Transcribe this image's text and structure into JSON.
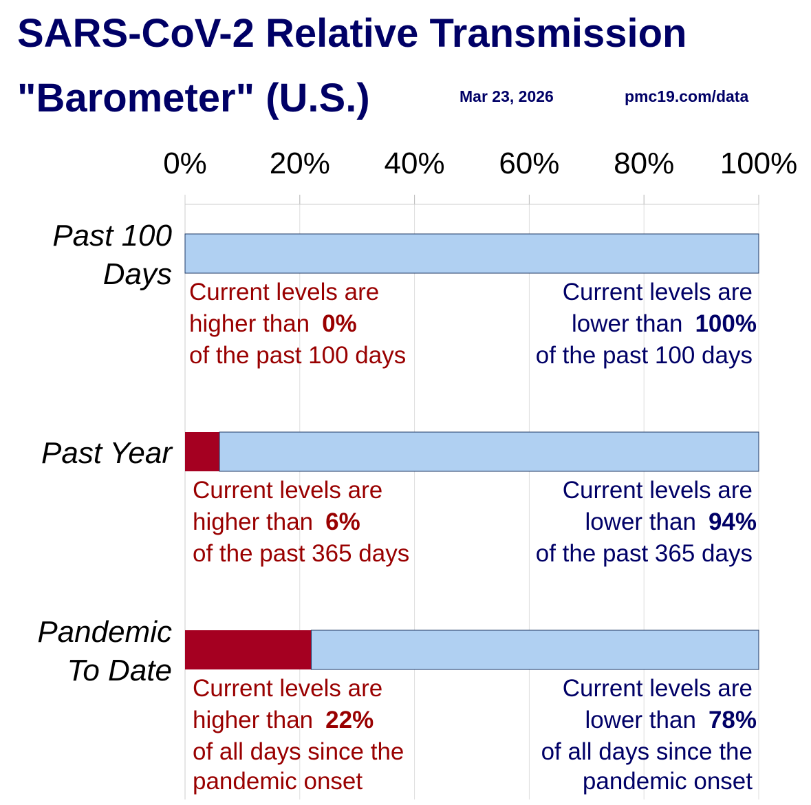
{
  "chart_data": {
    "type": "bar",
    "stacked": true,
    "orientation": "horizontal",
    "title": "SARS-CoV-2 Relative Transmission",
    "subtitle": "\"Barometer\" (U.S.)",
    "date": "Mar 23, 2026",
    "source": "pmc19.com/data",
    "categories": [
      "Past 100 Days",
      "Past Year",
      "Pandemic To Date"
    ],
    "series": [
      {
        "color": "#a50021",
        "values": [
          0,
          6,
          22
        ],
        "value_labels": [
          "0%",
          "6%",
          "22%"
        ],
        "notes": [
          [
            "Current levels are",
            "higher than",
            "of the past 100 days"
          ],
          [
            "Current levels are",
            "higher than",
            "of the past 365 days"
          ],
          [
            "Current levels are",
            "higher than",
            "of all days since the",
            "pandemic onset"
          ]
        ]
      },
      {
        "color": "#b0d0f2",
        "values": [
          100,
          94,
          78
        ],
        "value_labels": [
          "100%",
          "94%",
          "78%"
        ],
        "notes": [
          [
            "Current levels are",
            "lower than",
            "of the past 100 days"
          ],
          [
            "Current levels are",
            "lower than",
            "of the past 365 days"
          ],
          [
            "Current levels are",
            "lower than",
            "of all days since the",
            "pandemic onset"
          ]
        ]
      }
    ],
    "xlim": [
      0,
      100
    ],
    "xticks": [
      {
        "value": 0,
        "label": "0%"
      },
      {
        "value": 20,
        "label": "20%"
      },
      {
        "value": 40,
        "label": "40%"
      },
      {
        "value": 60,
        "label": "60%"
      },
      {
        "value": 80,
        "label": "80%"
      },
      {
        "value": 100,
        "label": "100%"
      }
    ],
    "grid": true
  }
}
